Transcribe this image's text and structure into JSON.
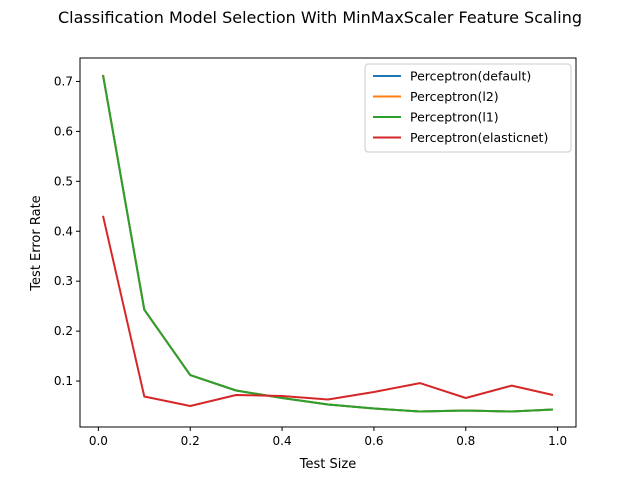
{
  "chart_data": {
    "type": "line",
    "title": "Classification Model Selection With MinMaxScaler Feature Scaling",
    "xlabel": "Test Size",
    "ylabel": "Test Error Rate",
    "xlim": [
      -0.04,
      1.04
    ],
    "ylim": [
      0.008,
      0.747
    ],
    "xticks": [
      0.0,
      0.2,
      0.4,
      0.6,
      0.8,
      1.0
    ],
    "xtick_labels": [
      "0.0",
      "0.2",
      "0.4",
      "0.6",
      "0.8",
      "1.0"
    ],
    "yticks": [
      0.1,
      0.2,
      0.3,
      0.4,
      0.5,
      0.6,
      0.7
    ],
    "ytick_labels": [
      "0.1",
      "0.2",
      "0.3",
      "0.4",
      "0.5",
      "0.6",
      "0.7"
    ],
    "grid": false,
    "legend_position": "top-right",
    "x": [
      0.01,
      0.1,
      0.2,
      0.3,
      0.4,
      0.5,
      0.6,
      0.7,
      0.8,
      0.9,
      0.99
    ],
    "series": [
      {
        "name": "Perceptron(default)",
        "color": "#1f77b4",
        "values": [
          0.713,
          0.243,
          0.112,
          0.081,
          0.066,
          0.053,
          0.045,
          0.039,
          0.041,
          0.039,
          0.043
        ]
      },
      {
        "name": "Perceptron(l2)",
        "color": "#ff7f0e",
        "values": [
          0.713,
          0.243,
          0.112,
          0.081,
          0.066,
          0.053,
          0.045,
          0.039,
          0.041,
          0.039,
          0.043
        ]
      },
      {
        "name": "Perceptron(l1)",
        "color": "#2ca02c",
        "values": [
          0.713,
          0.243,
          0.112,
          0.081,
          0.066,
          0.053,
          0.045,
          0.039,
          0.041,
          0.039,
          0.043
        ]
      },
      {
        "name": "Perceptron(elasticnet)",
        "color": "#d62728",
        "values": [
          0.431,
          0.069,
          0.05,
          0.072,
          0.07,
          0.063,
          0.078,
          0.096,
          0.066,
          0.091,
          0.072
        ]
      }
    ]
  }
}
